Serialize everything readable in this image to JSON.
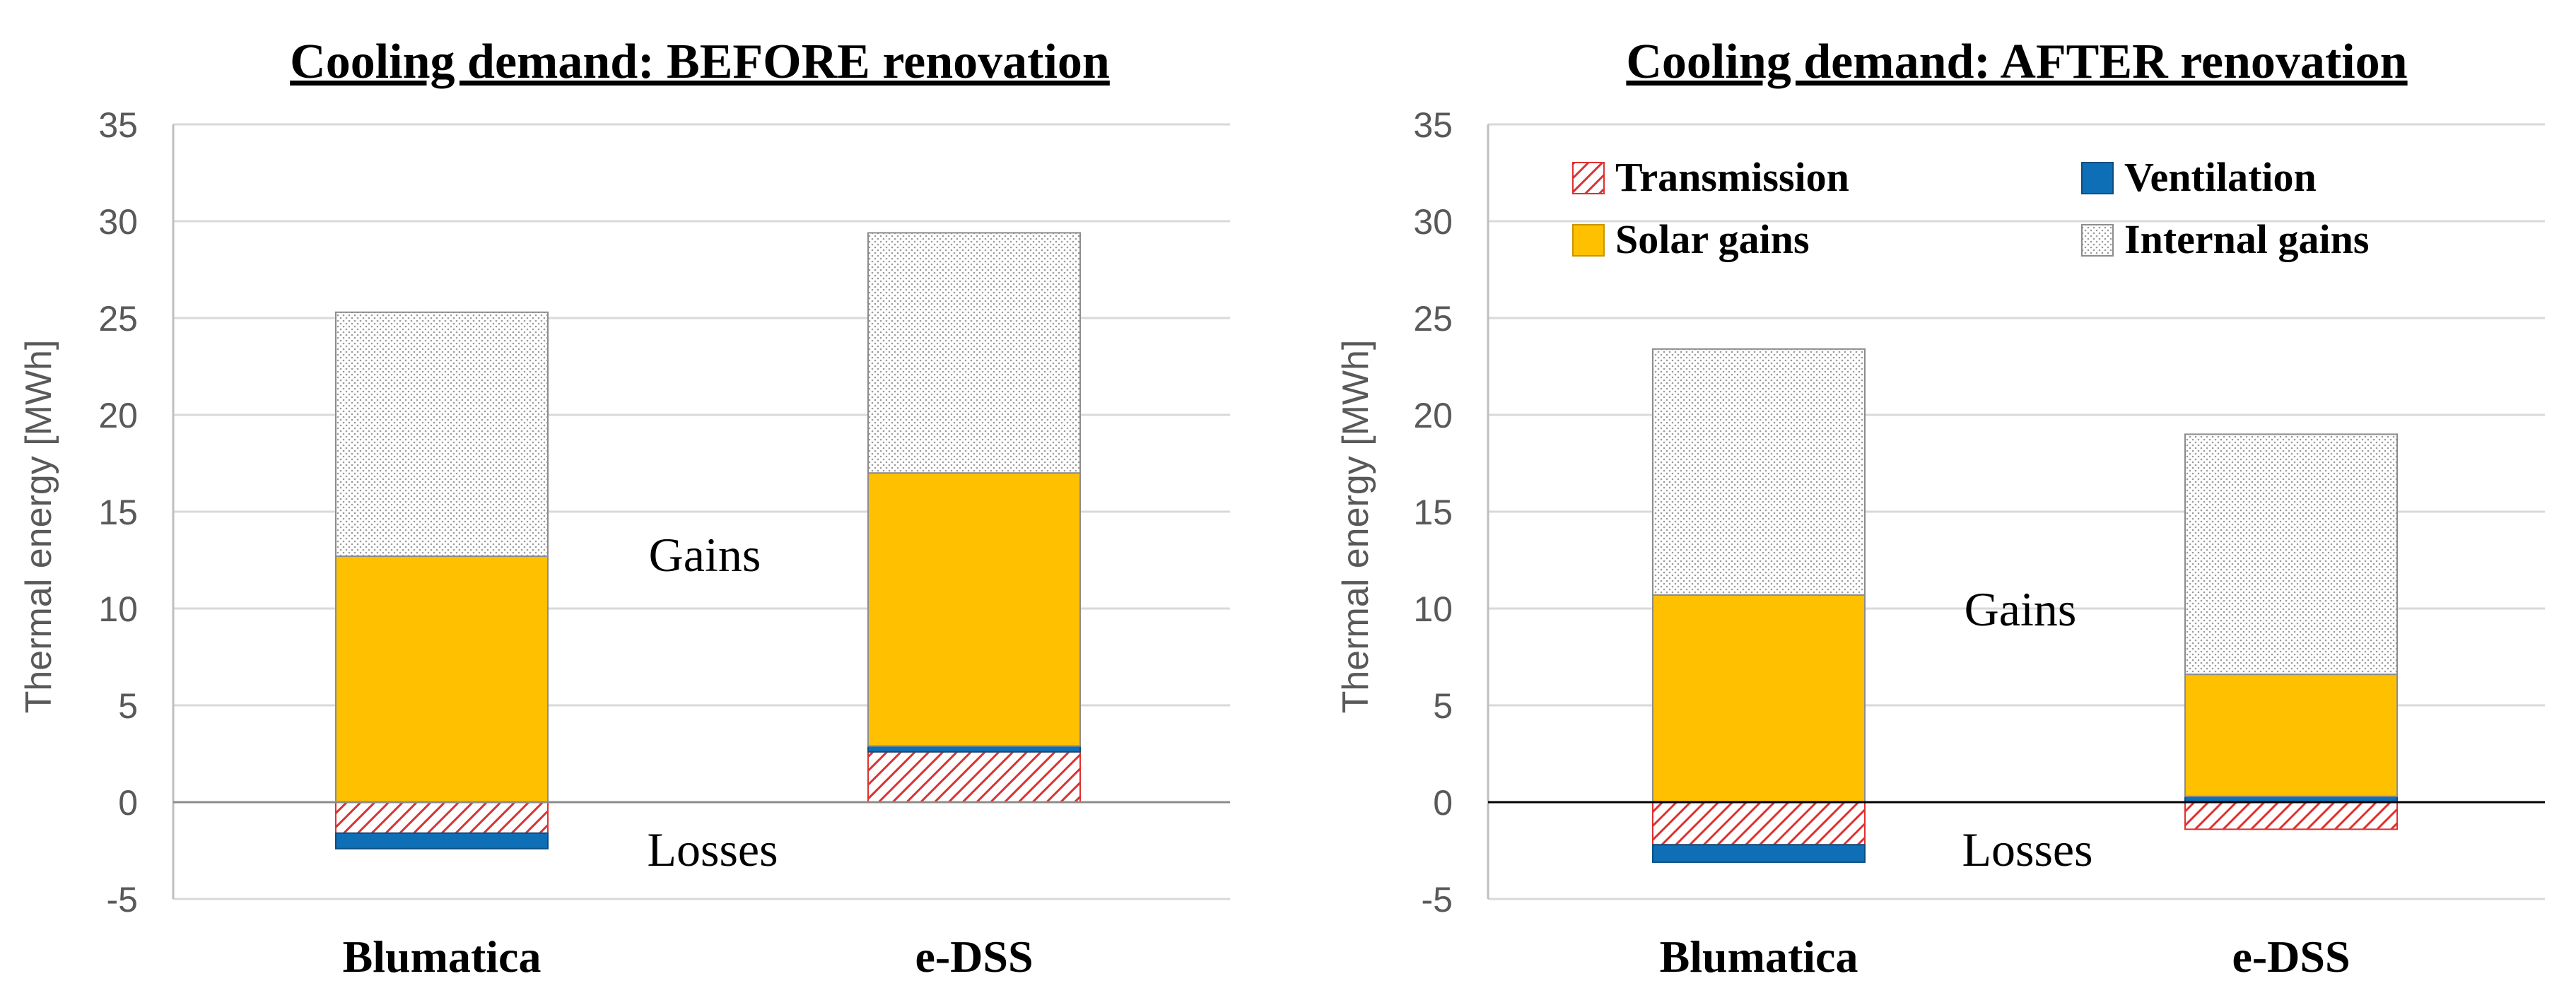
{
  "colors": {
    "transmission": "#e03030",
    "ventilation": "#0f6fb6",
    "solar": "#ffc000",
    "internal": "#c8c8c8"
  },
  "chart_data": [
    {
      "type": "bar",
      "stacked": true,
      "title": "Cooling demand: BEFORE renovation",
      "ylabel": "Thermal energy [MWh]",
      "xlabel": "",
      "ylim": [
        -5,
        35
      ],
      "yticks": [
        -5,
        0,
        5,
        10,
        15,
        20,
        25,
        30,
        35
      ],
      "categories": [
        "Blumatica",
        "e-DSS"
      ],
      "annotations": {
        "gains": "Gains",
        "losses": "Losses"
      },
      "legend": null,
      "series": [
        {
          "key": "transmission",
          "name": "Transmission",
          "values": [
            -1.6,
            2.6
          ]
        },
        {
          "key": "ventilation",
          "name": "Ventilation",
          "values": [
            -0.8,
            0.3
          ]
        },
        {
          "key": "solar",
          "name": "Solar gains",
          "values": [
            12.7,
            14.1
          ]
        },
        {
          "key": "internal",
          "name": "Internal gains",
          "values": [
            12.6,
            12.4
          ]
        }
      ]
    },
    {
      "type": "bar",
      "stacked": true,
      "title": "Cooling demand: AFTER renovation",
      "ylabel": "Thermal energy [MWh]",
      "xlabel": "",
      "ylim": [
        -5,
        35
      ],
      "yticks": [
        -5,
        0,
        5,
        10,
        15,
        20,
        25,
        30,
        35
      ],
      "categories": [
        "Blumatica",
        "e-DSS"
      ],
      "annotations": {
        "gains": "Gains",
        "losses": "Losses"
      },
      "legend": "top",
      "series": [
        {
          "key": "transmission",
          "name": "Transmission",
          "values": [
            -2.2,
            -1.4
          ]
        },
        {
          "key": "ventilation",
          "name": "Ventilation",
          "values": [
            -0.9,
            0.3
          ]
        },
        {
          "key": "solar",
          "name": "Solar gains",
          "values": [
            10.7,
            6.3
          ]
        },
        {
          "key": "internal",
          "name": "Internal gains",
          "values": [
            12.7,
            12.4
          ]
        }
      ]
    }
  ]
}
